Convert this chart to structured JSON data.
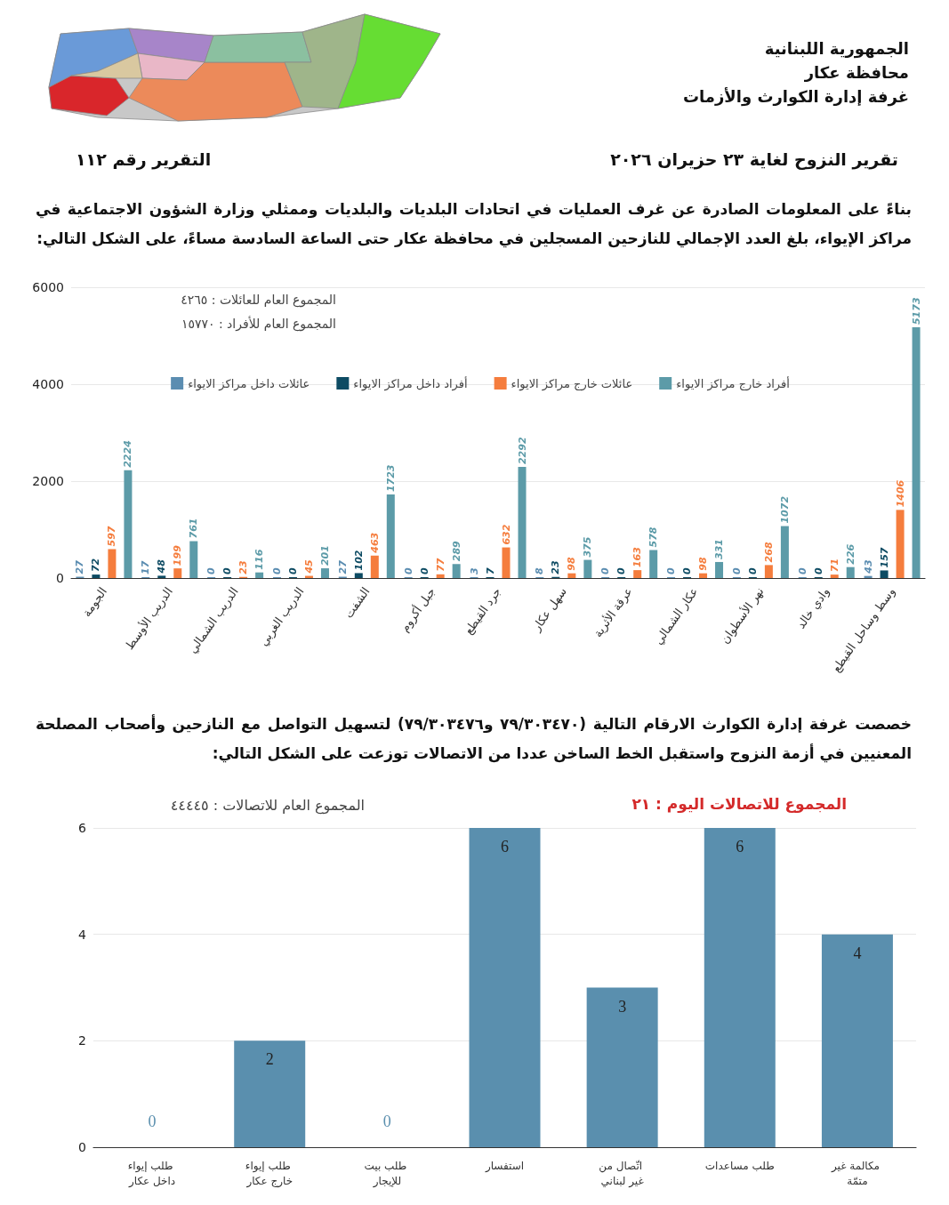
{
  "chart_data": [
    {
      "type": "bar",
      "title": "تقرير النزوح لغاية ٢٣ حزيران ٢٠٢٦",
      "subtitle": "بناءً على المعلومات الصادرة عن غرف العمليات في اتحادات البلديات والبلديات وممثلي وزارة الشؤون الاجتماعية في مراكز الإيواء، بلغ العدد الإجمالي للنازحين المسجلين في محافظة عكار حتى الساعة السادسة مساءً، على الشكل التالي:",
      "annotations": [
        "الجمهورية اللبنانية",
        "محافظة عكار",
        "غرفة إدارة الكوارث والأزمات",
        "التقرير رقم ١١٢",
        "المجموع العام للعائلات : ٤٢٦٥",
        "المجموع العام للأفراد : ١٥٧٧٠"
      ],
      "categories": [
        "الجومة",
        "الدريب الأوسط",
        "الدريب الشمالي",
        "الدريب الغربي",
        "الشفت",
        "جبل أكروم",
        "جرد القيطع",
        "سهل عكار",
        "عرقة الأثرية",
        "عكار الشمالي",
        "نهر الأسطوان",
        "وادي خالد",
        "وسط وساحل القيطع"
      ],
      "series": [
        {
          "name": "عائلات داخل مراكز الايواء",
          "color": "#5b8db1",
          "values": [
            27,
            17,
            0,
            0,
            27,
            0,
            3,
            8,
            0,
            0,
            0,
            0,
            43
          ]
        },
        {
          "name": "أفراد داخل مراكز الايواء",
          "color": "#0d4b63",
          "values": [
            72,
            48,
            0,
            0,
            102,
            0,
            7,
            23,
            0,
            0,
            0,
            0,
            157
          ]
        },
        {
          "name": "عائلات خارج مراكز الايواء",
          "color": "#f57d3d",
          "values": [
            597,
            199,
            23,
            45,
            463,
            77,
            632,
            98,
            163,
            98,
            268,
            71,
            1406
          ]
        },
        {
          "name": "أفراد خارج مراكز الايواء",
          "color": "#5c9ba8",
          "values": [
            2224,
            761,
            116,
            201,
            1723,
            289,
            2292,
            375,
            578,
            331,
            1072,
            226,
            5173
          ]
        }
      ],
      "ylim": [
        0,
        6000
      ],
      "yticks": [
        0,
        2000,
        4000,
        6000
      ],
      "grid": "y",
      "legend": "top",
      "data_labels": true
    },
    {
      "type": "bar",
      "title": "خصصت غرفة إدارة الكوارث الارقام التالية (٧٩/٣٠٣٤٧٠ و٧٩/٣٠٣٤٧٦) لتسهيل التواصل مع النازحين وأصحاب المصلحة المعنيين في أزمة النزوح واستقبل الخط الساخن عددا من الاتصالات توزعت على الشكل التالي:",
      "annotations": [
        "المجموع العام للاتصالات : ٤٤٤٤٥",
        "المجموع للاتصالات اليوم : ٢١"
      ],
      "categories": [
        "طلب إيواء داخل عكار",
        "طلب إيواء خارج عكار",
        "طلب بيت للإيجار",
        "استفسار",
        "اتّصال من غير لبناني",
        "طلب مساعدات",
        "مكالمة غير متمّة"
      ],
      "values": [
        0,
        2,
        0,
        6,
        3,
        6,
        4
      ],
      "color": "#5a8fae",
      "ylim": [
        0,
        6
      ],
      "yticks": [
        0,
        2,
        4,
        6
      ],
      "grid": "y",
      "data_labels": true
    }
  ]
}
